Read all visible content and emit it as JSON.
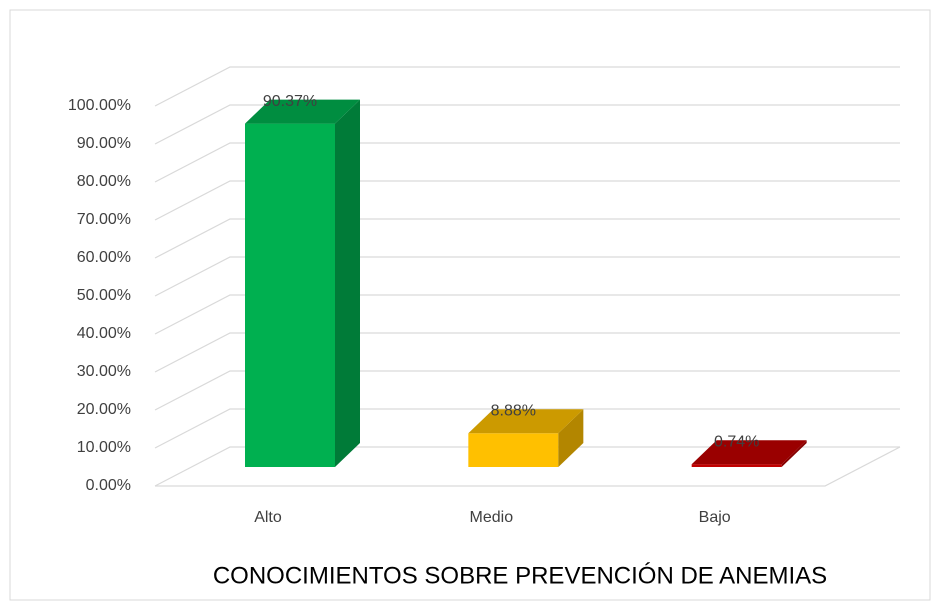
{
  "chart_data": {
    "type": "bar3d",
    "xlabel": "CONOCIMIENTOS SOBRE PREVENCIÓN DE ANEMIAS",
    "categories": [
      "Alto",
      "Medio",
      "Bajo"
    ],
    "values": [
      90.37,
      8.88,
      0.74
    ],
    "value_labels": [
      "90.37%",
      "8.88%",
      "0.74%"
    ],
    "colors": [
      "#00b050",
      "#ffc000",
      "#c00000"
    ],
    "ylim": [
      0,
      100
    ],
    "yticks": [
      {
        "value": 0,
        "label": "0.00%"
      },
      {
        "value": 10,
        "label": "10.00%"
      },
      {
        "value": 20,
        "label": "20.00%"
      },
      {
        "value": 30,
        "label": "30.00%"
      },
      {
        "value": 40,
        "label": "40.00%"
      },
      {
        "value": 50,
        "label": "50.00%"
      },
      {
        "value": 60,
        "label": "60.00%"
      },
      {
        "value": 70,
        "label": "70.00%"
      },
      {
        "value": 80,
        "label": "80.00%"
      },
      {
        "value": 90,
        "label": "90.00%"
      },
      {
        "value": 100,
        "label": "100.00%"
      }
    ],
    "grid": true
  }
}
